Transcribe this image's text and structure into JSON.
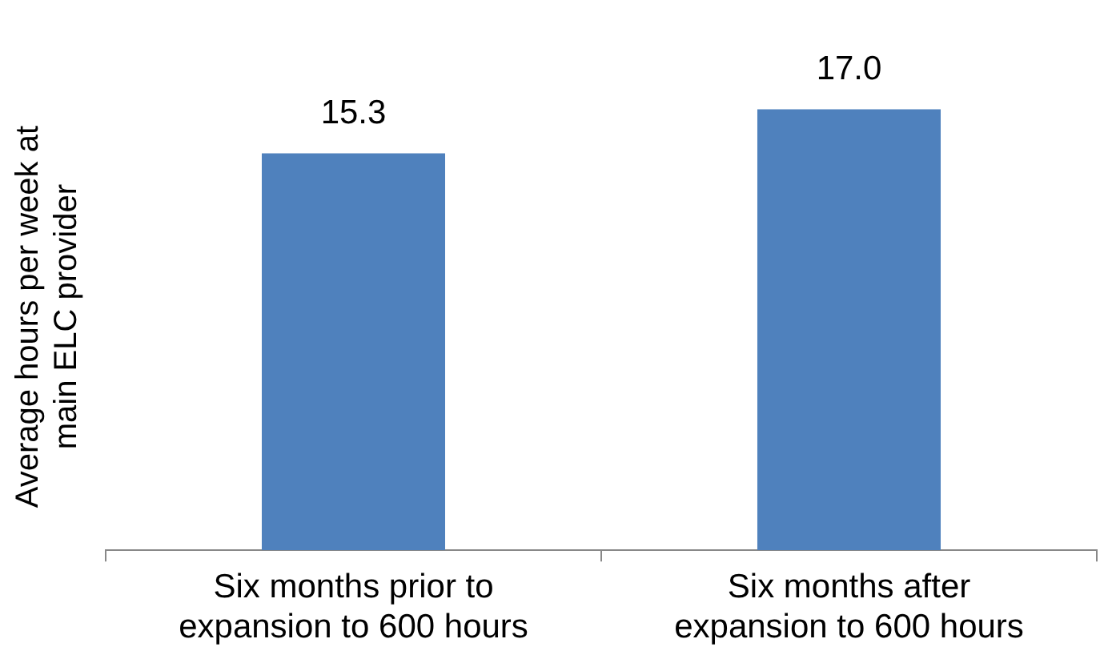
{
  "chart_data": {
    "type": "bar",
    "ylabel": "Average hours per week at main ELC provider",
    "categories": [
      "Six months prior to expansion to 600 hours",
      "Six months after expansion to 600 hours"
    ],
    "values": [
      15.3,
      17
    ],
    "value_labels": [
      "15.3",
      "17.0"
    ],
    "color": "#4f81bd",
    "legend": false
  }
}
